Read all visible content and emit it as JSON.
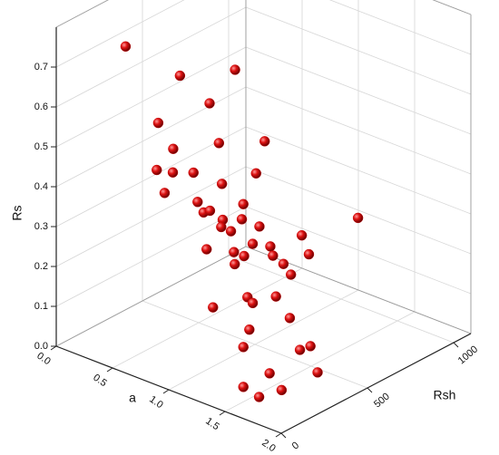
{
  "chart_data": {
    "type": "scatter3d",
    "xlabel": "a",
    "ylabel": "Rsh",
    "zlabel": "Rs",
    "xlim": [
      0,
      2
    ],
    "ylim": [
      0,
      1100
    ],
    "zlim": [
      0,
      0.8
    ],
    "xticks": [
      {
        "value": 0,
        "label": "0.0"
      },
      0.5,
      {
        "value": 1,
        "label": "1.0"
      },
      1.5,
      {
        "value": 2,
        "label": "2.0"
      }
    ],
    "yticks": [
      0,
      500,
      1000
    ],
    "zticks": [
      {
        "value": 0,
        "label": "0.0"
      },
      0.1,
      0.2,
      0.3,
      0.4,
      0.5,
      0.6,
      0.7
    ],
    "grid": true,
    "color": "#cc0000",
    "x": [
      0.31,
      0.64,
      0.67,
      0.75,
      0.6,
      0.58,
      0.68,
      0.78,
      0.74,
      0.73,
      0.76,
      1.01,
      0.81,
      0.86,
      0.95,
      0.85,
      1.06,
      1.05,
      1.02,
      1.16,
      0.94,
      1.19,
      1.04,
      1.15,
      1.11,
      1.03,
      1.12,
      0.98,
      1.29,
      1.21,
      1.16,
      1.28,
      1.1,
      1.02,
      1.32,
      1.24,
      1.34,
      1.44,
      1.24,
      1.31,
      1.41,
      1.51,
      1.4,
      1.34,
      1.71,
      1.59,
      1.51,
      1.62,
      1.65
    ],
    "y": [
      200,
      300,
      600,
      400,
      200,
      300,
      500,
      700,
      100,
      200,
      300,
      500,
      100,
      400,
      200,
      300,
      200,
      400,
      300,
      200,
      400,
      300,
      500,
      1000,
      700,
      200,
      300,
      500,
      400,
      300,
      500,
      200,
      600,
      800,
      500,
      300,
      400,
      200,
      100,
      500,
      200,
      100,
      500,
      600,
      400,
      200,
      100,
      250,
      100
    ],
    "z": [
      0.74,
      0.68,
      0.63,
      0.6,
      0.58,
      0.49,
      0.47,
      0.44,
      0.5,
      0.47,
      0.45,
      0.43,
      0.45,
      0.41,
      0.42,
      0.36,
      0.41,
      0.38,
      0.36,
      0.38,
      0.3,
      0.38,
      0.3,
      0.22,
      0.24,
      0.31,
      0.29,
      0.25,
      0.3,
      0.29,
      0.24,
      0.3,
      0.19,
      0.16,
      0.21,
      0.19,
      0.18,
      0.22,
      0.21,
      0.1,
      0.15,
      0.14,
      0.03,
      0.01,
      0.03,
      0.06,
      0.04,
      0.01,
      0.03
    ]
  }
}
